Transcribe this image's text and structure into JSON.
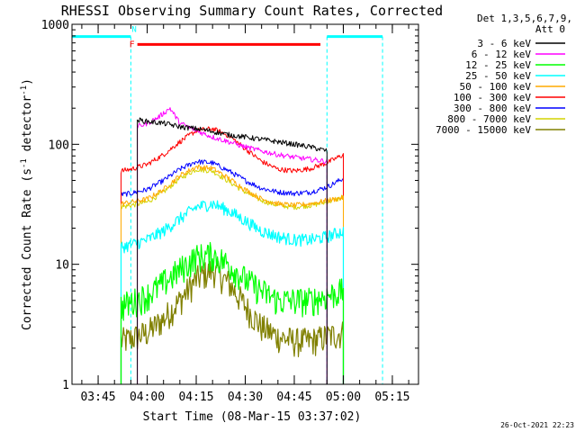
{
  "chart_data": {
    "type": "line",
    "title": "RHESSI Observing Summary Count Rates, Corrected",
    "xlabel": "Start Time (08-Mar-15 03:37:02)",
    "ylabel": "Corrected Count Rate (s⁻¹ detector⁻¹)",
    "ylabel_main": "Corrected Count Rate (s",
    "ylabel_mid": " detector",
    "ylabel_close": ")",
    "ylabel_sup": "-1",
    "y_scale": "log",
    "ylim": [
      1,
      1000
    ],
    "x_ticks": [
      "03:45",
      "04:00",
      "04:15",
      "04:30",
      "04:45",
      "05:00",
      "05:15"
    ],
    "y_ticks": [
      "1",
      "10",
      "100",
      "1000"
    ],
    "legend_header": [
      "Det 1,3,5,6,7,9,",
      "Att 0"
    ],
    "legend_position": "right",
    "timestamp": "26-Oct-2021 22:23",
    "flags": [
      {
        "label": "F",
        "color": "#ff0000",
        "start": "03:57",
        "end": "04:53"
      },
      {
        "label": "N",
        "color": "#00ffff",
        "start": "03:55",
        "end": "04:55"
      }
    ],
    "night_intervals": [
      [
        "03:37",
        "03:55"
      ],
      [
        "04:55",
        "05:12"
      ]
    ],
    "series": [
      {
        "name": "3 - 6 keV",
        "color": "#000000",
        "start": "03:57",
        "end": "04:55",
        "x": [
          "03:57",
          "04:00",
          "04:05",
          "04:10",
          "04:15",
          "04:20",
          "04:25",
          "04:30",
          "04:35",
          "04:40",
          "04:45",
          "04:50",
          "04:55"
        ],
        "y": [
          160,
          155,
          150,
          140,
          135,
          128,
          120,
          115,
          110,
          105,
          100,
          95,
          88
        ]
      },
      {
        "name": "6 - 12 keV",
        "color": "#ff00ff",
        "start": "03:57",
        "end": "04:55",
        "x": [
          "03:57",
          "04:00",
          "04:03",
          "04:07",
          "04:10",
          "04:15",
          "04:20",
          "04:25",
          "04:30",
          "04:35",
          "04:40",
          "04:45",
          "04:50",
          "04:55"
        ],
        "y": [
          140,
          150,
          165,
          200,
          150,
          130,
          115,
          105,
          95,
          88,
          82,
          78,
          75,
          72
        ]
      },
      {
        "name": "12 - 25 keV",
        "color": "#00ff00",
        "start": "03:52",
        "end": "05:00",
        "x": [
          "03:52",
          "03:55",
          "04:00",
          "04:05",
          "04:10",
          "04:15",
          "04:20",
          "04:25",
          "04:30",
          "04:35",
          "04:40",
          "04:45",
          "04:50",
          "04:55",
          "05:00"
        ],
        "y": [
          4.5,
          4.8,
          5.5,
          7,
          9,
          11.5,
          12,
          10,
          7.5,
          6,
          5,
          5,
          5,
          5.5,
          6
        ]
      },
      {
        "name": "25 - 50 keV",
        "color": "#00ffff",
        "start": "03:52",
        "end": "05:00",
        "x": [
          "03:52",
          "03:55",
          "04:00",
          "04:05",
          "04:10",
          "04:15",
          "04:20",
          "04:25",
          "04:30",
          "04:35",
          "04:40",
          "04:45",
          "04:50",
          "04:55",
          "05:00"
        ],
        "y": [
          14,
          14.5,
          16,
          19,
          24,
          30,
          32,
          28,
          23,
          19,
          17,
          16,
          16,
          17,
          19
        ]
      },
      {
        "name": "50 - 100 keV",
        "color": "#ffaa00",
        "start": "03:52",
        "end": "05:00",
        "x": [
          "03:52",
          "03:55",
          "04:00",
          "04:05",
          "04:10",
          "04:15",
          "04:20",
          "04:25",
          "04:30",
          "04:35",
          "04:40",
          "04:45",
          "04:50",
          "04:55",
          "05:00"
        ],
        "y": [
          32,
          33,
          35,
          42,
          55,
          65,
          63,
          52,
          42,
          35,
          32,
          31,
          32,
          34,
          36
        ]
      },
      {
        "name": "100 - 300 keV",
        "color": "#ff0000",
        "start": "03:52",
        "end": "05:00",
        "x": [
          "03:52",
          "03:55",
          "04:00",
          "04:05",
          "04:10",
          "04:15",
          "04:20",
          "04:25",
          "04:30",
          "04:35",
          "04:40",
          "04:45",
          "04:50",
          "04:55",
          "05:00"
        ],
        "y": [
          60,
          62,
          68,
          82,
          105,
          130,
          135,
          118,
          92,
          72,
          62,
          60,
          63,
          70,
          82
        ]
      },
      {
        "name": "300 - 800 keV",
        "color": "#0000ff",
        "start": "03:52",
        "end": "05:00",
        "x": [
          "03:52",
          "03:55",
          "04:00",
          "04:05",
          "04:10",
          "04:15",
          "04:20",
          "04:25",
          "04:30",
          "04:35",
          "04:40",
          "04:45",
          "04:50",
          "04:55",
          "05:00"
        ],
        "y": [
          38,
          39,
          42,
          50,
          62,
          72,
          70,
          60,
          50,
          43,
          40,
          39,
          40,
          44,
          52
        ]
      },
      {
        "name": "800 - 7000 keV",
        "color": "#d4d400",
        "start": "03:52",
        "end": "05:00",
        "x": [
          "03:52",
          "03:55",
          "04:00",
          "04:05",
          "04:10",
          "04:15",
          "04:20",
          "04:25",
          "04:30",
          "04:35",
          "04:40",
          "04:45",
          "04:50",
          "04:55",
          "05:00"
        ],
        "y": [
          30,
          31,
          33,
          40,
          52,
          62,
          60,
          49,
          40,
          34,
          31,
          30,
          31,
          33,
          36
        ]
      },
      {
        "name": "7000 - 15000 keV",
        "color": "#808000",
        "start": "03:52",
        "end": "05:00",
        "x": [
          "03:52",
          "03:55",
          "04:00",
          "04:05",
          "04:10",
          "04:15",
          "04:20",
          "04:25",
          "04:30",
          "04:35",
          "04:40",
          "04:45",
          "04:50",
          "04:55",
          "05:00"
        ],
        "y": [
          2.3,
          2.4,
          2.7,
          3.5,
          5,
          7.5,
          9,
          7,
          4.5,
          3,
          2.5,
          2.3,
          2.3,
          2.5,
          2.7
        ]
      }
    ]
  }
}
